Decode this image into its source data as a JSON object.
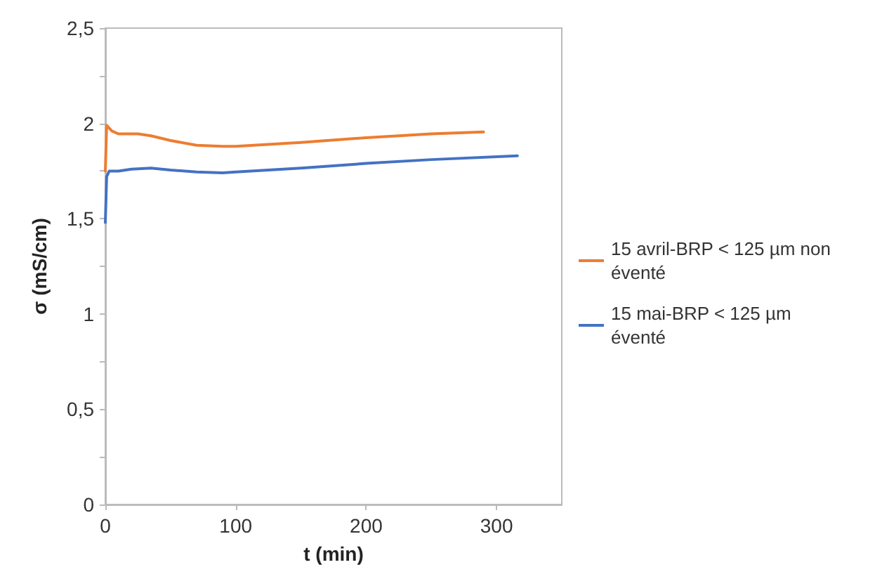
{
  "chart_data": {
    "type": "line",
    "xlabel": "t (min)",
    "ylabel": "σ (mS/cm)",
    "xlim": [
      0,
      350
    ],
    "xticks": [
      0,
      100,
      200,
      300
    ],
    "ylim": [
      0,
      2.5
    ],
    "yticks": [
      0,
      {
        "value": 0.25,
        "label": null
      },
      {
        "value": 0.5,
        "label": "0,5"
      },
      {
        "value": 0.75,
        "label": null
      },
      1,
      {
        "value": 1.25,
        "label": null
      },
      {
        "value": 1.5,
        "label": "1,5"
      },
      {
        "value": 1.75,
        "label": null
      },
      2,
      {
        "value": 2.25,
        "label": null
      },
      {
        "value": 2.5,
        "label": "2,5"
      }
    ],
    "grid": false,
    "legend": "right",
    "marker": "none",
    "line_style": "solid",
    "series": [
      {
        "name": "15 avril-BRP < 125 µm non éventé",
        "color": "#ed7d31",
        "x": [
          0,
          1,
          5,
          10,
          25,
          35,
          50,
          70,
          90,
          100,
          150,
          200,
          250,
          290
        ],
        "values": [
          1.75,
          1.99,
          1.96,
          1.945,
          1.945,
          1.935,
          1.91,
          1.885,
          1.88,
          1.88,
          1.9,
          1.925,
          1.945,
          1.955
        ]
      },
      {
        "name": "15 mai-BRP < 125 µm éventé",
        "color": "#4472c4",
        "x": [
          0,
          1,
          3,
          10,
          20,
          35,
          50,
          70,
          90,
          100,
          150,
          200,
          250,
          316
        ],
        "values": [
          1.48,
          1.72,
          1.75,
          1.75,
          1.76,
          1.765,
          1.755,
          1.745,
          1.74,
          1.745,
          1.765,
          1.79,
          1.81,
          1.83
        ]
      }
    ]
  }
}
